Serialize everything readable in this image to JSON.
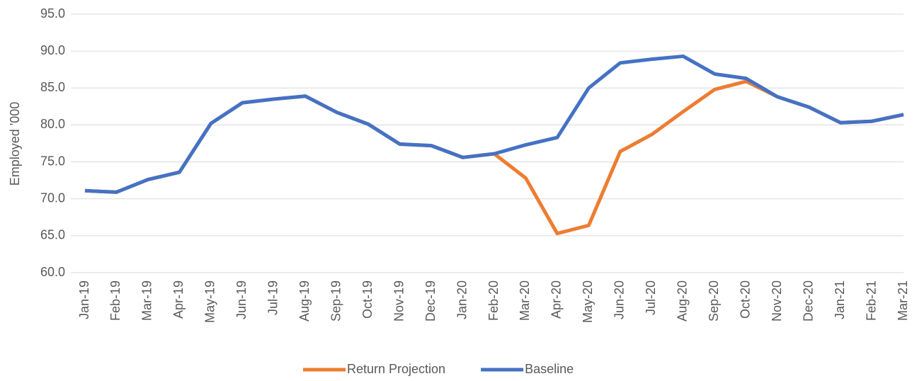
{
  "chart_data": {
    "type": "line",
    "y_label": "Employed '000",
    "categories": [
      "Jan-19",
      "Feb-19",
      "Mar-19",
      "Apr-19",
      "May-19",
      "Jun-19",
      "Jul-19",
      "Aug-19",
      "Sep-19",
      "Oct-19",
      "Nov-19",
      "Dec-19",
      "Jan-20",
      "Feb-20",
      "Mar-20",
      "Apr-20",
      "May-20",
      "Jun-20",
      "Jul-20",
      "Aug-20",
      "Sep-20",
      "Oct-20",
      "Nov-20",
      "Dec-20",
      "Jan-21",
      "Feb-21",
      "Mar-21"
    ],
    "series": [
      {
        "name": "Return Projection",
        "color": "#ed7d31",
        "values": [
          71.1,
          70.9,
          72.6,
          73.6,
          80.2,
          83.0,
          83.5,
          83.9,
          81.7,
          80.1,
          77.4,
          77.2,
          75.6,
          76.1,
          72.8,
          65.3,
          66.4,
          76.4,
          78.7,
          81.8,
          84.8,
          85.9,
          83.8,
          82.4,
          80.3,
          80.5,
          81.4
        ]
      },
      {
        "name": "Baseline",
        "color": "#4472c4",
        "values": [
          71.1,
          70.9,
          72.6,
          73.6,
          80.2,
          83.0,
          83.5,
          83.9,
          81.7,
          80.1,
          77.4,
          77.2,
          75.6,
          76.1,
          77.3,
          78.3,
          85.0,
          88.4,
          88.9,
          89.3,
          86.9,
          86.3,
          83.8,
          82.4,
          80.3,
          80.5,
          81.4
        ]
      }
    ],
    "ylim": [
      60,
      95
    ],
    "yticks": [
      {
        "value": 60,
        "label": "60.0"
      },
      {
        "value": 65,
        "label": "65.0"
      },
      {
        "value": 70,
        "label": "70.0"
      },
      {
        "value": 75,
        "label": "75.0"
      },
      {
        "value": 80,
        "label": "80.0"
      },
      {
        "value": 85,
        "label": "85.0"
      },
      {
        "value": 90,
        "label": "90.0"
      },
      {
        "value": 95,
        "label": "95.0"
      }
    ],
    "grid": true,
    "legend": "bottom"
  }
}
